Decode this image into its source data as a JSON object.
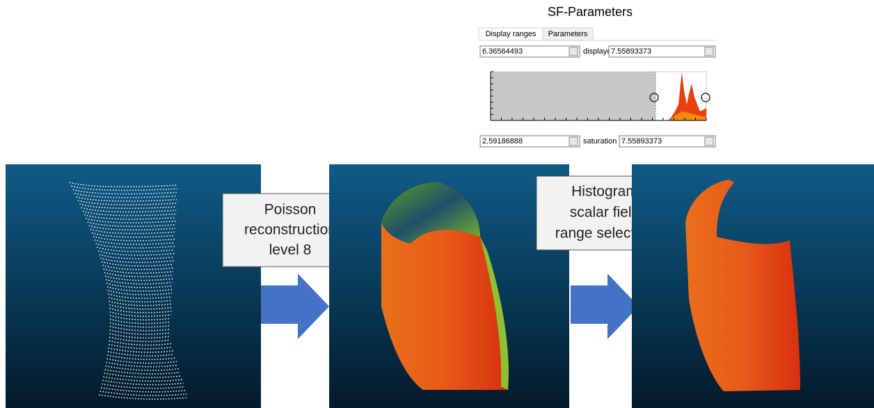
{
  "panel": {
    "title": "SF-Parameters",
    "tabs": [
      "Display ranges",
      "Parameters"
    ],
    "display_row": {
      "min": "6.36564493",
      "label": "displayed",
      "max": "7.55893373"
    },
    "saturation_row": {
      "min": "2.59186888",
      "label": "saturation",
      "max": "7.55893373"
    }
  },
  "steps": [
    {
      "lines": [
        "Poisson",
        "reconstruction",
        "level 8"
      ]
    },
    {
      "lines": [
        "Histogram",
        "scalar field",
        "range selection"
      ]
    }
  ]
}
